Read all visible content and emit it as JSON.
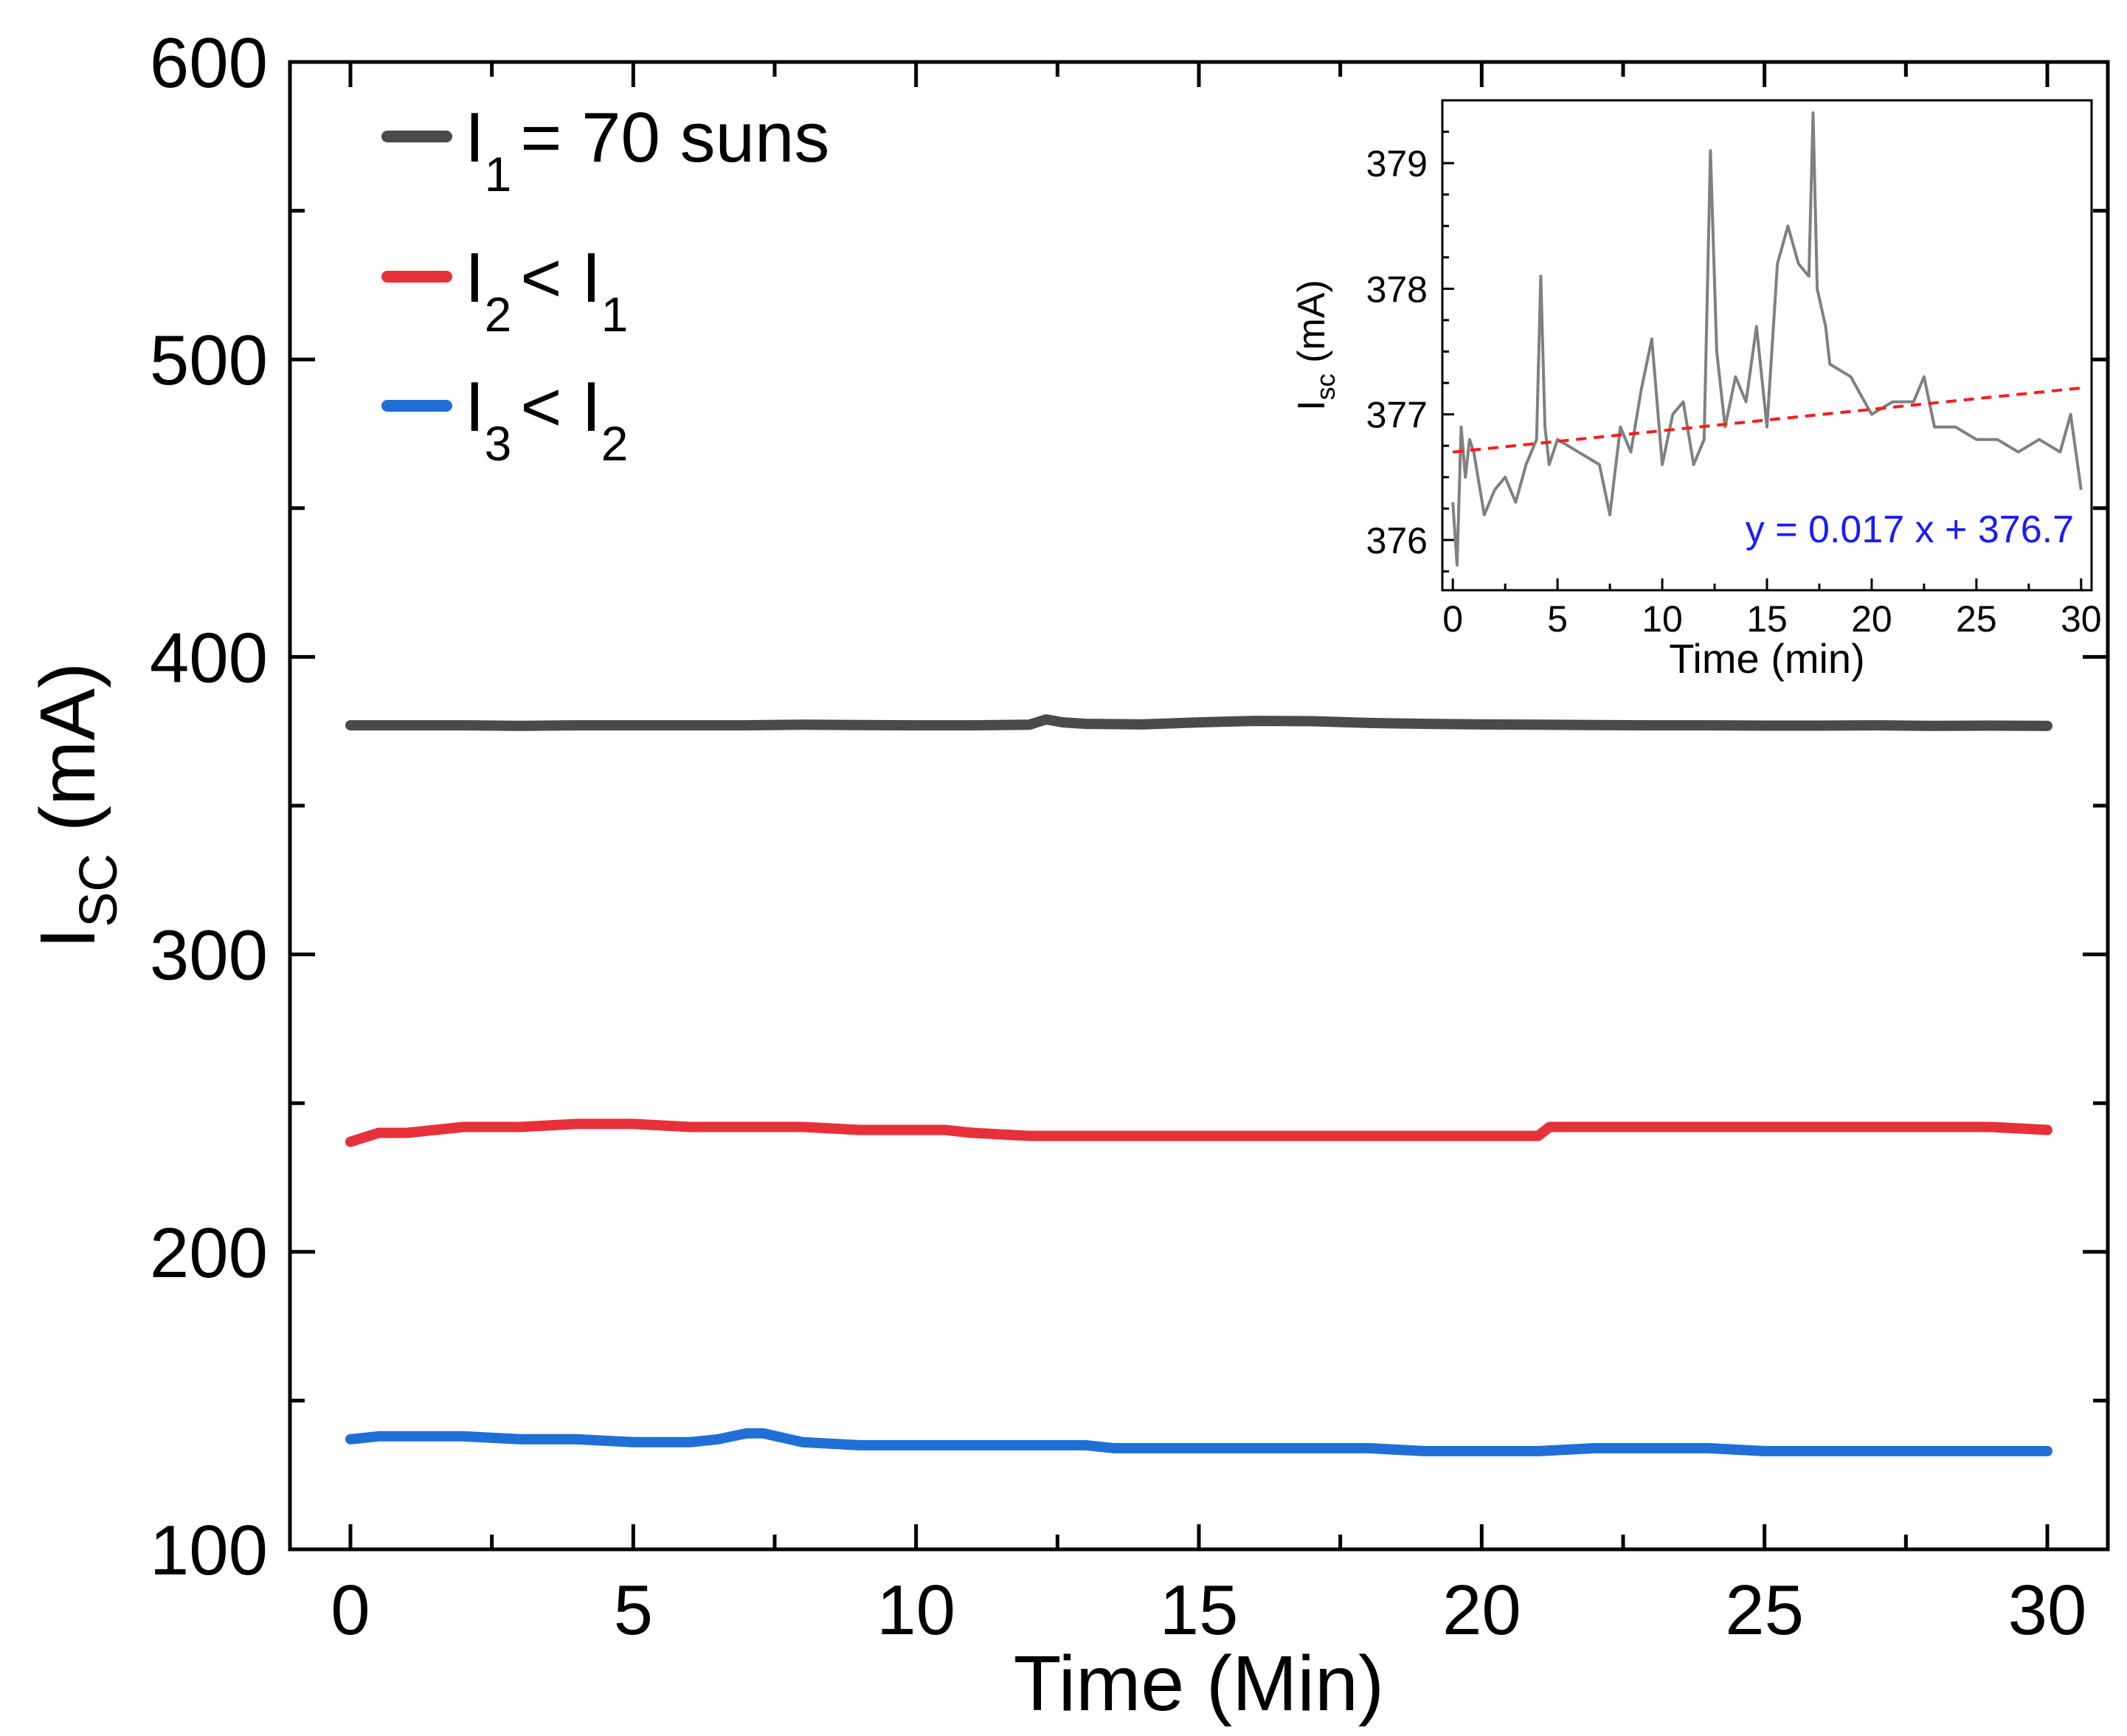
{
  "chart_data": [
    {
      "type": "line",
      "xlabel": "Time (Min)",
      "ylabel": {
        "main": "I",
        "sub": "SC",
        "unit": " (mA)"
      },
      "xlim": [
        0,
        30
      ],
      "ylim": [
        100,
        600
      ],
      "x_ticks": [
        0,
        5,
        10,
        15,
        20,
        25,
        30
      ],
      "y_ticks": [
        100,
        200,
        300,
        400,
        500,
        600
      ],
      "legend_position": "top-left",
      "series": [
        {
          "name": "I1 = 70 suns",
          "legend": {
            "main": "I",
            "sub": "1",
            "rest": "= 70 suns",
            "sub2": ""
          },
          "color": "#4a4a4a",
          "x": [
            0,
            1,
            2,
            3,
            4,
            5,
            6,
            7,
            8,
            9,
            10,
            11,
            12,
            12.3,
            12.6,
            13,
            14,
            15,
            16,
            17,
            18,
            19,
            20,
            21,
            22,
            23,
            24,
            25,
            26,
            27,
            28,
            29,
            30
          ],
          "values": [
            377,
            377,
            377,
            376.8,
            377,
            377,
            377,
            377,
            377.2,
            377.1,
            377,
            377,
            377.2,
            379,
            378,
            377.5,
            377.3,
            378,
            378.5,
            378.4,
            377.8,
            377.5,
            377.3,
            377.2,
            377.1,
            377,
            377,
            376.9,
            376.9,
            377,
            376.8,
            376.9,
            376.8
          ]
        },
        {
          "name": "I2 < I1",
          "legend": {
            "main": "I",
            "sub": "2",
            "rest": "< I",
            "sub2": "1"
          },
          "color": "#e8303a",
          "x": [
            0,
            0.5,
            1,
            2,
            3,
            4,
            5,
            6,
            7,
            8,
            9,
            10,
            10.5,
            11,
            12,
            13,
            14,
            15,
            16,
            17,
            18,
            19,
            20,
            21,
            21.2,
            22,
            23,
            24,
            25,
            26,
            27,
            28,
            29,
            30
          ],
          "values": [
            237,
            240,
            240,
            242,
            242,
            243,
            243,
            242,
            242,
            242,
            241,
            241,
            241,
            240,
            239,
            239,
            239,
            239,
            239,
            239,
            239,
            239,
            239,
            239,
            242,
            242,
            242,
            242,
            242,
            242,
            242,
            242,
            242,
            241
          ]
        },
        {
          "name": "I3 < I2",
          "legend": {
            "main": "I",
            "sub": "3",
            "rest": "< I",
            "sub2": "2"
          },
          "color": "#1f6fd6",
          "x": [
            0,
            0.5,
            1,
            2,
            3,
            4,
            5,
            6,
            6.5,
            7,
            7.3,
            8,
            9,
            10,
            11,
            12,
            13,
            13.5,
            14,
            15,
            16,
            17,
            18,
            19,
            20,
            21,
            22,
            23,
            24,
            25,
            26,
            27,
            28,
            29,
            30
          ],
          "values": [
            137,
            138,
            138,
            138,
            137,
            137,
            136,
            136,
            137,
            139,
            139,
            136,
            135,
            135,
            135,
            135,
            135,
            134,
            134,
            134,
            134,
            134,
            134,
            133,
            133,
            133,
            134,
            134,
            134,
            133,
            133,
            133,
            133,
            133,
            133
          ]
        }
      ]
    },
    {
      "type": "line",
      "role": "inset",
      "xlabel": "Time (min)",
      "ylabel": {
        "main": "I",
        "sub": "sc",
        "unit": " (mA)"
      },
      "xlim": [
        -0.5,
        30.5
      ],
      "ylim": [
        375.6,
        379.5
      ],
      "x_ticks": [
        0,
        5,
        10,
        15,
        20,
        25,
        30
      ],
      "y_ticks": [
        376,
        377,
        378,
        379
      ],
      "series": [
        {
          "name": "Isc",
          "color": "#808080",
          "x": [
            0,
            0.2,
            0.4,
            0.6,
            0.8,
            1,
            1.5,
            2,
            2.5,
            3,
            3.5,
            4,
            4.2,
            4.4,
            4.6,
            5,
            6,
            7,
            7.5,
            8,
            8.5,
            9,
            9.5,
            10,
            10.5,
            11,
            11.5,
            12,
            12.3,
            12.6,
            13,
            13.5,
            14,
            14.5,
            15,
            15.5,
            16,
            16.5,
            17,
            17.2,
            17.4,
            17.8,
            18,
            19,
            20,
            21,
            22,
            22.5,
            23,
            24,
            25,
            26,
            27,
            28,
            29,
            29.5,
            30
          ],
          "values": [
            376.3,
            375.8,
            376.9,
            376.5,
            376.8,
            376.7,
            376.2,
            376.4,
            376.5,
            376.3,
            376.6,
            376.8,
            378.1,
            376.9,
            376.6,
            376.8,
            376.7,
            376.6,
            376.2,
            376.9,
            376.7,
            377.2,
            377.6,
            376.6,
            377.0,
            377.1,
            376.6,
            376.8,
            379.1,
            377.5,
            376.9,
            377.3,
            377.1,
            377.7,
            376.9,
            378.2,
            378.5,
            378.2,
            378.1,
            379.4,
            378.0,
            377.7,
            377.4,
            377.3,
            377.0,
            377.1,
            377.1,
            377.3,
            376.9,
            376.9,
            376.8,
            376.8,
            376.7,
            376.8,
            376.7,
            377.0,
            376.4
          ]
        }
      ],
      "fit": {
        "label": "y = 0.017 x + 376.7",
        "slope": 0.017,
        "intercept": 376.7,
        "x_range": [
          0,
          30
        ],
        "color": "#ff1a1a",
        "label_color": "#1a1aff"
      }
    }
  ]
}
